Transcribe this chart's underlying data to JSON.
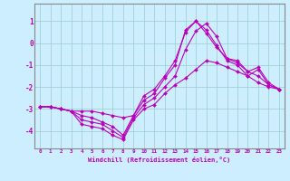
{
  "xlabel": "Windchill (Refroidissement éolien,°C)",
  "xlim": [
    -0.5,
    23.5
  ],
  "ylim": [
    -4.8,
    1.8
  ],
  "yticks": [
    -4,
    -3,
    -2,
    -1,
    0,
    1
  ],
  "xticks": [
    0,
    1,
    2,
    3,
    4,
    5,
    6,
    7,
    8,
    9,
    10,
    11,
    12,
    13,
    14,
    15,
    16,
    17,
    18,
    19,
    20,
    21,
    22,
    23
  ],
  "background_color": "#cceeff",
  "grid_color": "#99cccc",
  "line_color": "#bb00bb",
  "figsize": [
    3.2,
    2.0
  ],
  "dpi": 100,
  "lines": [
    [
      -2.9,
      -2.9,
      -3.0,
      -3.1,
      -3.7,
      -3.8,
      -3.9,
      -4.2,
      -4.4,
      -3.5,
      -3.0,
      -2.8,
      -2.3,
      -1.9,
      -1.6,
      -1.2,
      -0.8,
      -0.9,
      -1.1,
      -1.3,
      -1.5,
      -1.8,
      -2.0,
      -2.1
    ],
    [
      -2.9,
      -2.9,
      -3.0,
      -3.1,
      -3.5,
      -3.6,
      -3.7,
      -4.0,
      -4.3,
      -3.4,
      -2.8,
      -2.5,
      -2.0,
      -1.5,
      -0.3,
      0.55,
      0.9,
      0.3,
      -0.7,
      -0.9,
      -1.3,
      -1.5,
      -1.9,
      -2.1
    ],
    [
      -2.9,
      -2.9,
      -3.0,
      -3.1,
      -3.3,
      -3.4,
      -3.6,
      -3.8,
      -4.2,
      -3.3,
      -2.6,
      -2.3,
      -1.6,
      -1.0,
      0.6,
      1.0,
      0.6,
      -0.1,
      -0.8,
      -1.0,
      -1.5,
      -1.2,
      -1.9,
      -2.1
    ],
    [
      -2.9,
      -2.9,
      -3.0,
      -3.1,
      -3.1,
      -3.1,
      -3.2,
      -3.3,
      -3.4,
      -3.3,
      -2.4,
      -2.1,
      -1.5,
      -0.8,
      0.5,
      1.0,
      0.45,
      -0.2,
      -0.7,
      -0.8,
      -1.3,
      -1.1,
      -1.8,
      -2.1
    ]
  ]
}
